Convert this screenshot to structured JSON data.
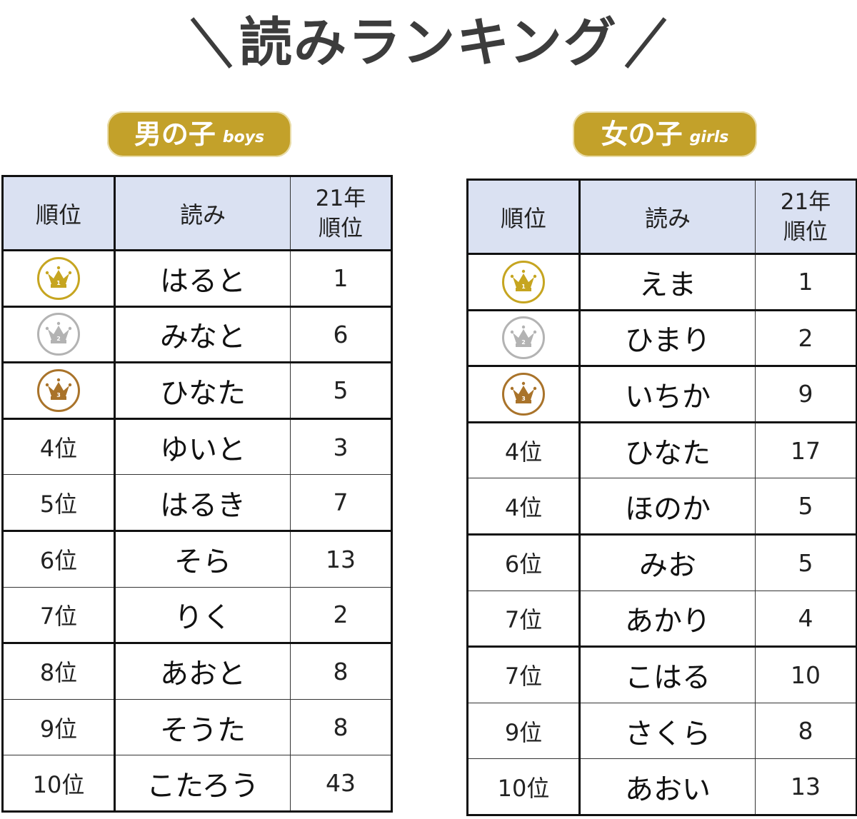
{
  "title": {
    "text": "読みランキング",
    "left_deco": "＼",
    "right_deco": "／"
  },
  "colors": {
    "badge": "#c3a12a",
    "header_bg": "#dae1f2",
    "gold": "#c6a520",
    "silver": "#b3b3b3",
    "bronze": "#a9732a",
    "title": "#3c3c3c"
  },
  "sections": {
    "boys": {
      "label": "男の子",
      "sublabel": "boys",
      "headers": {
        "rank": "順位",
        "reading": "読み",
        "prev_line1": "21年",
        "prev_line2": "順位"
      },
      "rows": [
        {
          "rank": "1位",
          "medal": "gold-crown-icon",
          "medal_num": "1",
          "reading": "はると",
          "prev": "1"
        },
        {
          "rank": "2位",
          "medal": "silver-crown-icon",
          "medal_num": "2",
          "reading": "みなと",
          "prev": "6"
        },
        {
          "rank": "3位",
          "medal": "bronze-crown-icon",
          "medal_num": "3",
          "reading": "ひなた",
          "prev": "5"
        },
        {
          "rank": "4位",
          "reading": "ゆいと",
          "prev": "3"
        },
        {
          "rank": "5位",
          "reading": "はるき",
          "prev": "7"
        },
        {
          "rank": "6位",
          "reading": "そら",
          "prev": "13"
        },
        {
          "rank": "7位",
          "reading": "りく",
          "prev": "2"
        },
        {
          "rank": "8位",
          "reading": "あおと",
          "prev": "8"
        },
        {
          "rank": "9位",
          "reading": "そうた",
          "prev": "8"
        },
        {
          "rank": "10位",
          "reading": "こたろう",
          "prev": "43"
        }
      ]
    },
    "girls": {
      "label": "女の子",
      "sublabel": "girls",
      "headers": {
        "rank": "順位",
        "reading": "読み",
        "prev_line1": "21年",
        "prev_line2": "順位"
      },
      "rows": [
        {
          "rank": "1位",
          "medal": "gold-crown-icon",
          "medal_num": "1",
          "reading": "えま",
          "prev": "1"
        },
        {
          "rank": "2位",
          "medal": "silver-crown-icon",
          "medal_num": "2",
          "reading": "ひまり",
          "prev": "2"
        },
        {
          "rank": "3位",
          "medal": "bronze-crown-icon",
          "medal_num": "3",
          "reading": "いちか",
          "prev": "9"
        },
        {
          "rank": "4位",
          "reading": "ひなた",
          "prev": "17"
        },
        {
          "rank": "4位",
          "reading": "ほのか",
          "prev": "5"
        },
        {
          "rank": "6位",
          "reading": "みお",
          "prev": "5"
        },
        {
          "rank": "7位",
          "reading": "あかり",
          "prev": "4"
        },
        {
          "rank": "7位",
          "reading": "こはる",
          "prev": "10"
        },
        {
          "rank": "9位",
          "reading": "さくら",
          "prev": "8"
        },
        {
          "rank": "10位",
          "reading": "あおい",
          "prev": "13"
        }
      ]
    }
  }
}
